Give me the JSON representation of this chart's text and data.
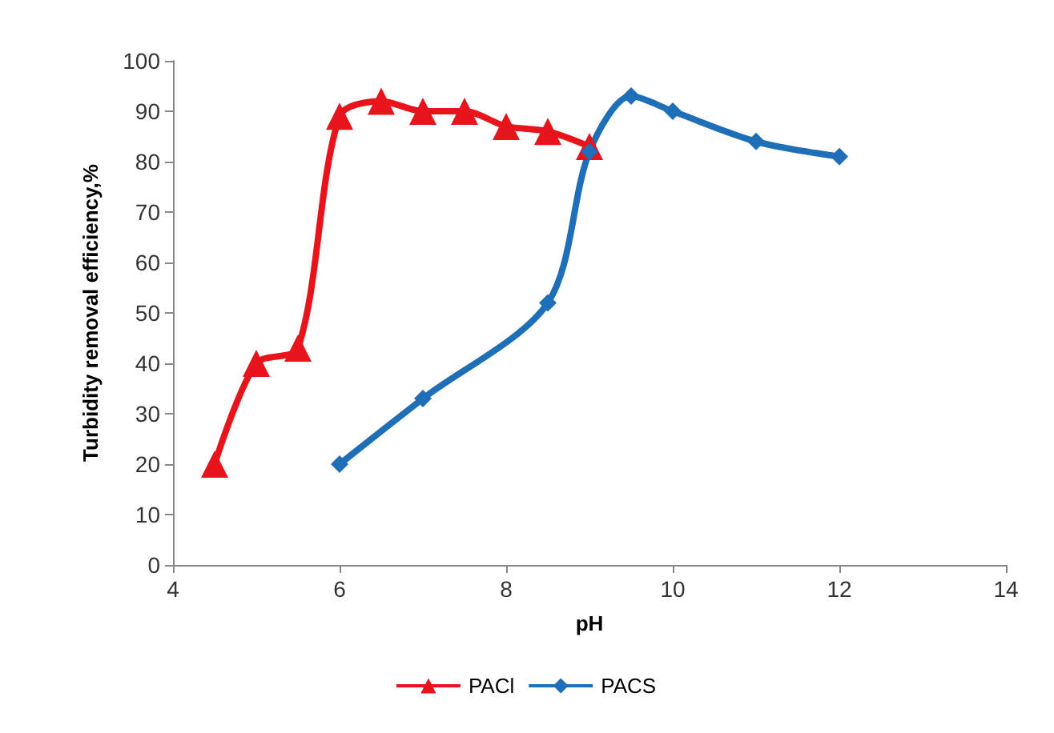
{
  "chart_data": {
    "type": "line",
    "xlabel": "pH",
    "ylabel": "Turbidity removal efficiency,%",
    "xlim": [
      4,
      14
    ],
    "xticks": [
      4,
      6,
      8,
      10,
      12,
      14
    ],
    "ylim": [
      0,
      100
    ],
    "yticks": [
      0,
      10,
      20,
      30,
      40,
      50,
      60,
      70,
      80,
      90,
      100
    ],
    "grid": false,
    "legend": "bottom",
    "line_style": "solid",
    "series": [
      {
        "name": "PACl",
        "color": "#e8141b",
        "marker": "triangle",
        "x": [
          4.5,
          5,
          5.5,
          6,
          6.5,
          7,
          7.5,
          8,
          8.5,
          9
        ],
        "values": [
          20,
          40,
          43,
          89,
          92,
          90,
          90,
          87,
          86,
          83
        ]
      },
      {
        "name": "PACS",
        "color": "#1f6fb8",
        "marker": "diamond",
        "x": [
          6,
          7,
          8.5,
          9,
          9.5,
          10,
          11,
          12
        ],
        "values": [
          20,
          33,
          52,
          82,
          93,
          90,
          84,
          81
        ]
      }
    ]
  }
}
